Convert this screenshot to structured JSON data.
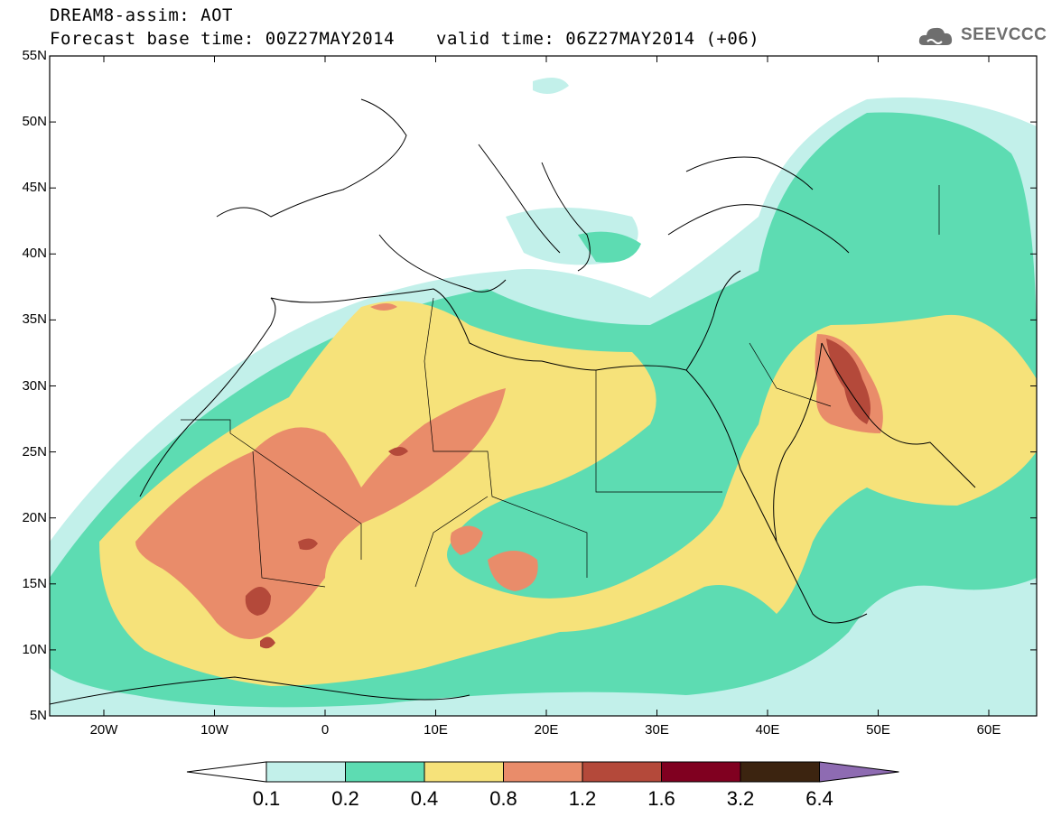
{
  "title": {
    "line1": "DREAM8-assim: AOT",
    "line2": "Forecast base time: 00Z27MAY2014",
    "valid": "valid time: 06Z27MAY2014 (+06)"
  },
  "logo": {
    "text": "SEEVCCC",
    "icon": "cloud-icon"
  },
  "lat_labels": [
    "55N",
    "50N",
    "45N",
    "40N",
    "35N",
    "30N",
    "25N",
    "20N",
    "15N",
    "10N",
    "5N"
  ],
  "lon_labels": [
    "20W",
    "10W",
    "0",
    "10E",
    "20E",
    "30E",
    "40E",
    "50E",
    "60E"
  ],
  "colorbar": {
    "labels": [
      "0.1",
      "0.2",
      "0.4",
      "0.8",
      "1.2",
      "1.6",
      "3.2",
      "6.4"
    ],
    "colors": [
      "#c2f0ea",
      "#5ddcb2",
      "#f6e27a",
      "#e98c6a",
      "#b4493a",
      "#800020",
      "#3c2410",
      "#8e6bb2"
    ]
  }
}
